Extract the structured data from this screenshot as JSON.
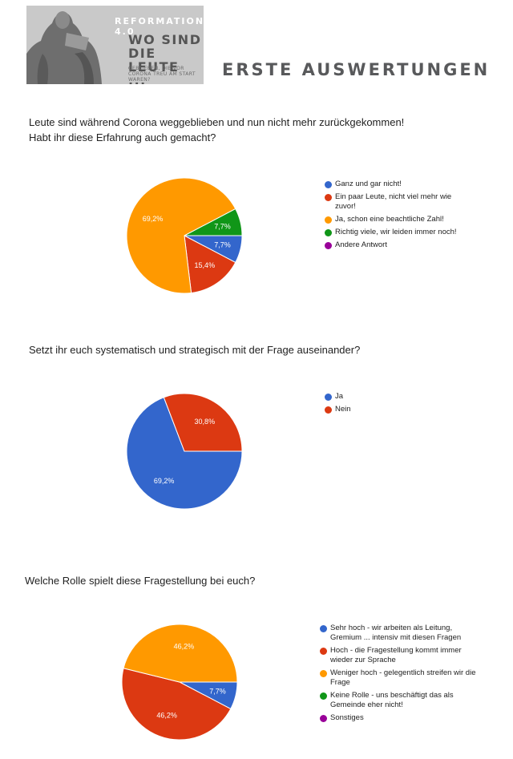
{
  "header": {
    "kicker": "REFORMATION 4.0",
    "headline": "WO SIND DIE LEUTE ...",
    "subline": "GEBLIEBEN, DIE VOR CORONA TREU AM START WAREN?",
    "page_title": "ERSTE AUSWERTUNGEN"
  },
  "chart_data": [
    {
      "type": "pie",
      "title": "Leute sind während Corona weggeblieben und nun nicht mehr zurückgekommen! Habt ihr diese Erfahrung auch gemacht?",
      "title_lines": [
        "Leute sind während Corona weggeblieben und nun nicht mehr zurückgekommen!",
        "Habt ihr diese Erfahrung auch gemacht?"
      ],
      "slices": [
        {
          "label": "Ganz und gar nicht!",
          "value": 7.7,
          "display": "7,7%",
          "color": "#3366cc"
        },
        {
          "label": "Ein paar Leute, nicht viel mehr wie zuvor!",
          "value": 15.4,
          "display": "15,4%",
          "color": "#dc3912"
        },
        {
          "label": "Ja, schon eine beachtliche Zahl!",
          "value": 69.2,
          "display": "69,2%",
          "color": "#ff9900"
        },
        {
          "label": "Richtig viele, wir leiden immer noch!",
          "value": 7.7,
          "display": "7,7%",
          "color": "#109618"
        },
        {
          "label": "Andere Antwort",
          "value": 0,
          "display": "",
          "color": "#990099"
        }
      ]
    },
    {
      "type": "pie",
      "title": "Setzt ihr euch systematisch und strategisch mit der Frage auseinander?",
      "title_lines": [
        "Setzt ihr euch systematisch und strategisch mit der Frage auseinander?"
      ],
      "slices": [
        {
          "label": "Ja",
          "value": 69.2,
          "display": "69,2%",
          "color": "#3366cc"
        },
        {
          "label": "Nein",
          "value": 30.8,
          "display": "30,8%",
          "color": "#dc3912"
        }
      ]
    },
    {
      "type": "pie",
      "title": "Welche Rolle spielt diese Fragestellung bei euch?",
      "title_lines": [
        "Welche Rolle spielt diese Fragestellung bei euch?"
      ],
      "slices": [
        {
          "label": "Sehr hoch - wir arbeiten als Leitung, Gremium ... intensiv mit diesen Fragen",
          "value": 7.7,
          "display": "7,7%",
          "color": "#3366cc"
        },
        {
          "label": "Hoch - die Fragestellung kommt immer wieder zur Sprache",
          "value": 46.2,
          "display": "46,2%",
          "color": "#dc3912"
        },
        {
          "label": "Weniger hoch - gelegentlich streifen wir die Frage",
          "value": 46.2,
          "display": "46,2%",
          "color": "#ff9900"
        },
        {
          "label": "Keine Rolle - uns beschäftigt das als Gemeinde eher nicht!",
          "value": 0,
          "display": "",
          "color": "#109618"
        },
        {
          "label": "Sonstiges",
          "value": 0,
          "display": "",
          "color": "#990099"
        }
      ]
    }
  ]
}
